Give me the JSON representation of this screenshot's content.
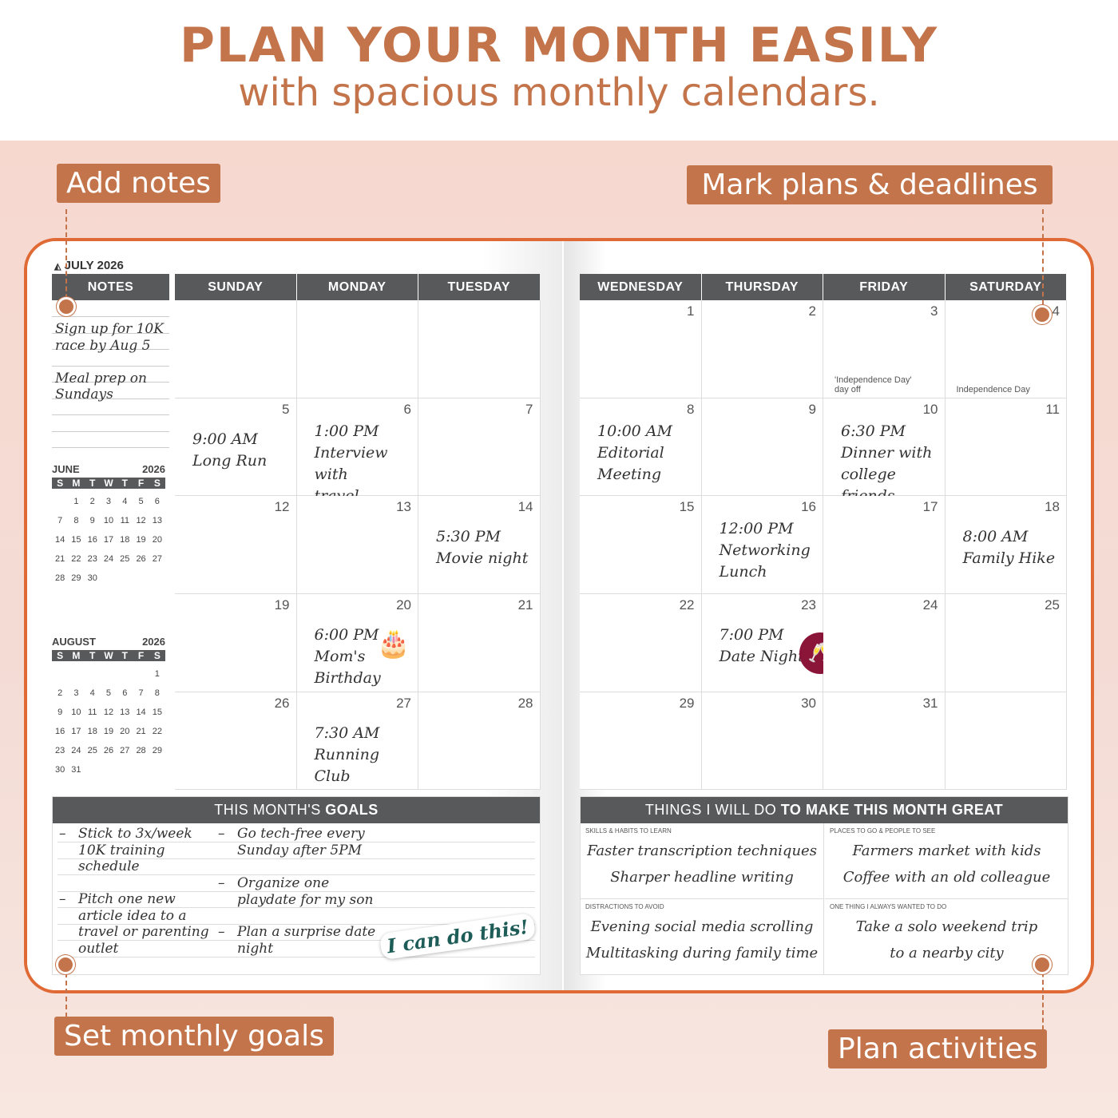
{
  "headline": {
    "title": "PLAN YOUR MONTH EASILY",
    "subtitle": "with spacious monthly calendars."
  },
  "callouts": {
    "notes": "Add notes",
    "plans": "Mark plans & deadlines",
    "goals": "Set monthly goals",
    "activities": "Plan activities"
  },
  "colors": {
    "accent": "#c4744a",
    "book_border": "#e06a35",
    "header": "#58595b"
  },
  "planner": {
    "month_title": "JULY 2026",
    "notes_header": "NOTES",
    "notes": [
      "Sign up for 10K",
      "race by Aug 5",
      "Meal prep on",
      "Sundays"
    ],
    "left_days": [
      "SUNDAY",
      "MONDAY",
      "TUESDAY"
    ],
    "right_days": [
      "WEDNESDAY",
      "THURSDAY",
      "FRIDAY",
      "SATURDAY"
    ],
    "left_weeks": [
      [
        {},
        {},
        {}
      ],
      [
        {
          "day": "5",
          "lines": [
            "9:00 AM",
            "Long Run"
          ]
        },
        {
          "day": "6",
          "lines": [
            "1:00 PM",
            "Interview with",
            "travel blogger"
          ]
        },
        {
          "day": "7"
        }
      ],
      [
        {
          "day": "12"
        },
        {
          "day": "13"
        },
        {
          "day": "14",
          "lines": [
            "5:30 PM",
            "Movie night"
          ]
        }
      ],
      [
        {
          "day": "19"
        },
        {
          "day": "20",
          "lines": [
            "6:00 PM",
            "Mom's Birthday"
          ],
          "sticker": "cake-icon"
        },
        {
          "day": "21"
        }
      ],
      [
        {
          "day": "26"
        },
        {
          "day": "27",
          "lines": [
            "7:30 AM",
            "Running Club"
          ]
        },
        {
          "day": "28"
        }
      ]
    ],
    "right_weeks": [
      [
        {
          "day": "1"
        },
        {
          "day": "2"
        },
        {
          "day": "3",
          "note": "'Independence Day' day off"
        },
        {
          "day": "4",
          "note": "Independence Day"
        }
      ],
      [
        {
          "day": "8",
          "lines": [
            "10:00 AM",
            "Editorial",
            "Meeting"
          ]
        },
        {
          "day": "9"
        },
        {
          "day": "10",
          "lines": [
            "6:30 PM",
            "Dinner with",
            "college friends"
          ]
        },
        {
          "day": "11"
        }
      ],
      [
        {
          "day": "15"
        },
        {
          "day": "16",
          "lines": [
            "12:00 PM",
            "Networking",
            "Lunch"
          ]
        },
        {
          "day": "17"
        },
        {
          "day": "18",
          "lines": [
            "8:00 AM",
            "Family Hike"
          ]
        }
      ],
      [
        {
          "day": "22"
        },
        {
          "day": "23",
          "lines": [
            "7:00 PM",
            "Date Night"
          ],
          "sticker": "wine-glasses-icon"
        },
        {
          "day": "24"
        },
        {
          "day": "25"
        }
      ],
      [
        {
          "day": "29"
        },
        {
          "day": "30"
        },
        {
          "day": "31"
        },
        {}
      ]
    ],
    "mini_calendars": [
      {
        "month": "JUNE",
        "year": "2026",
        "weekdays": [
          "S",
          "M",
          "T",
          "W",
          "T",
          "F",
          "S"
        ],
        "days": [
          "",
          "1",
          "2",
          "3",
          "4",
          "5",
          "6",
          "7",
          "8",
          "9",
          "10",
          "11",
          "12",
          "13",
          "14",
          "15",
          "16",
          "17",
          "18",
          "19",
          "20",
          "21",
          "22",
          "23",
          "24",
          "25",
          "26",
          "27",
          "28",
          "29",
          "30"
        ]
      },
      {
        "month": "AUGUST",
        "year": "2026",
        "weekdays": [
          "S",
          "M",
          "T",
          "W",
          "T",
          "F",
          "S"
        ],
        "days": [
          "",
          "",
          "",
          "",
          "",
          "",
          "1",
          "2",
          "3",
          "4",
          "5",
          "6",
          "7",
          "8",
          "9",
          "10",
          "11",
          "12",
          "13",
          "14",
          "15",
          "16",
          "17",
          "18",
          "19",
          "20",
          "21",
          "22",
          "23",
          "24",
          "25",
          "26",
          "27",
          "28",
          "29",
          "30",
          "31"
        ]
      }
    ],
    "goals": {
      "title_light": "THIS MONTH'S ",
      "title_bold": "GOALS",
      "left": [
        [
          "Stick to 3x/week",
          "10K  training",
          "schedule"
        ],
        [
          "Pitch one new",
          "article idea to a",
          "travel or parenting",
          "outlet"
        ]
      ],
      "right": [
        [
          "Go tech-free every",
          "Sunday after 5PM"
        ],
        [
          "Organize one",
          "playdate for my son"
        ],
        [
          "Plan a surprise date",
          "night"
        ]
      ],
      "sticker": "I can do this!"
    },
    "great": {
      "title_light": "THINGS I WILL DO ",
      "title_bold": "TO MAKE THIS MONTH GREAT",
      "sections": [
        {
          "label": "SKILLS & HABITS TO LEARN",
          "items": [
            "Faster transcription techniques",
            "Sharper headline writing"
          ]
        },
        {
          "label": "PLACES TO GO & PEOPLE TO SEE",
          "items": [
            "Farmers market with kids",
            "Coffee with an old colleague"
          ]
        },
        {
          "label": "DISTRACTIONS TO AVOID",
          "items": [
            "Evening social media scrolling",
            "Multitasking during family time"
          ]
        },
        {
          "label": "ONE THING I ALWAYS WANTED TO DO",
          "items": [
            "Take a solo weekend trip",
            "to a nearby city"
          ]
        }
      ]
    }
  }
}
